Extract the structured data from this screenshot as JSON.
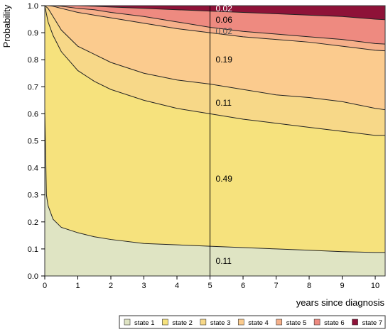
{
  "chart_data": {
    "type": "area",
    "stacked": true,
    "ylabel": "Probability",
    "xlabel": "years since diagnosis",
    "xlim": [
      0,
      10.3
    ],
    "ylim": [
      0,
      1.0
    ],
    "x_ticks": [
      "0",
      "1",
      "2",
      "3",
      "4",
      "5",
      "6",
      "7",
      "8",
      "9",
      "10"
    ],
    "y_ticks": [
      "0.0",
      "0.1",
      "0.2",
      "0.3",
      "0.4",
      "0.5",
      "0.6",
      "0.7",
      "0.8",
      "0.9",
      "1.0"
    ],
    "x": [
      0,
      0.05,
      0.1,
      0.25,
      0.5,
      1,
      1.5,
      2,
      3,
      4,
      5,
      6,
      7,
      8,
      9,
      10,
      10.3
    ],
    "cumulative_boundaries": [
      {
        "upper_of": "state 1",
        "values": [
          0.62,
          0.3,
          0.26,
          0.21,
          0.18,
          0.16,
          0.145,
          0.135,
          0.12,
          0.115,
          0.11,
          0.105,
          0.1,
          0.095,
          0.09,
          0.087,
          0.087
        ]
      },
      {
        "upper_of": "state 2",
        "values": [
          1.0,
          0.97,
          0.94,
          0.89,
          0.83,
          0.76,
          0.72,
          0.69,
          0.65,
          0.62,
          0.6,
          0.58,
          0.565,
          0.55,
          0.535,
          0.52,
          0.52
        ]
      },
      {
        "upper_of": "state 3",
        "values": [
          1.0,
          0.995,
          0.99,
          0.96,
          0.91,
          0.85,
          0.82,
          0.79,
          0.75,
          0.725,
          0.71,
          0.69,
          0.67,
          0.66,
          0.645,
          0.62,
          0.615
        ]
      },
      {
        "upper_of": "state 4",
        "values": [
          1.0,
          1.0,
          1.0,
          0.998,
          0.99,
          0.975,
          0.965,
          0.955,
          0.935,
          0.915,
          0.9,
          0.885,
          0.875,
          0.865,
          0.85,
          0.835,
          0.833
        ]
      },
      {
        "upper_of": "state 5",
        "values": [
          1.0,
          1.0,
          1.0,
          1.0,
          0.998,
          0.99,
          0.985,
          0.975,
          0.96,
          0.94,
          0.92,
          0.905,
          0.895,
          0.885,
          0.875,
          0.86,
          0.858
        ]
      },
      {
        "upper_of": "state 6",
        "values": [
          1.0,
          1.0,
          1.0,
          1.0,
          1.0,
          1.0,
          0.998,
          0.995,
          0.99,
          0.985,
          0.98,
          0.975,
          0.97,
          0.965,
          0.96,
          0.95,
          0.948
        ]
      }
    ],
    "series": [
      {
        "name": "state 1",
        "color": "#dfe4c3"
      },
      {
        "name": "state 2",
        "color": "#f6e27d"
      },
      {
        "name": "state 3",
        "color": "#f7d888"
      },
      {
        "name": "state 4",
        "color": "#fbcb8e"
      },
      {
        "name": "state 5",
        "color": "#f6b08a"
      },
      {
        "name": "state 6",
        "color": "#ee8a80"
      },
      {
        "name": "state 7",
        "color": "#8e1238"
      }
    ],
    "reference_line_x": 5,
    "annotations": [
      {
        "text": "0.11",
        "x": 5,
        "y": 0.055,
        "color": "#000000"
      },
      {
        "text": "0.49",
        "x": 5,
        "y": 0.36,
        "color": "#000000"
      },
      {
        "text": "0.11",
        "x": 5,
        "y": 0.64,
        "color": "#000000"
      },
      {
        "text": "0.19",
        "x": 5,
        "y": 0.8,
        "color": "#000000"
      },
      {
        "text": "0.02",
        "x": 5,
        "y": 0.905,
        "color": "#555555"
      },
      {
        "text": "0.06",
        "x": 5,
        "y": 0.948,
        "color": "#000000"
      },
      {
        "text": "0.02",
        "x": 5,
        "y": 0.99,
        "color": "#ffffff"
      }
    ],
    "legend_position": "bottom-right"
  }
}
